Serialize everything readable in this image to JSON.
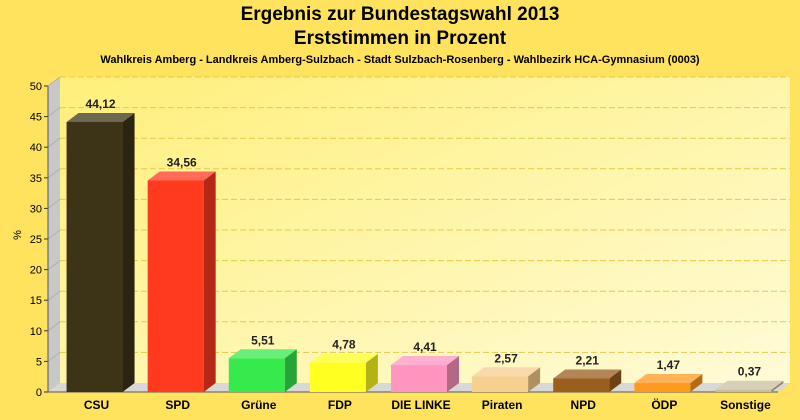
{
  "chart_data": {
    "type": "bar",
    "title": "Ergebnis zur Bundestagswahl 2013",
    "subtitle": "Erststimmen in Prozent",
    "caption": "Wahlkreis Amberg - Landkreis Amberg-Sulzbach - Stadt Sulzbach-Rosenberg - Wahlbezirk HCA-Gymnasium (0003)",
    "ylabel": "%",
    "xlabel": "",
    "ylim": [
      0,
      50
    ],
    "yticks": [
      0,
      5,
      10,
      15,
      20,
      25,
      30,
      35,
      40,
      45,
      50
    ],
    "grid": true,
    "categories": [
      "CSU",
      "SPD",
      "Grüne",
      "FDP",
      "DIE LINKE",
      "Piraten",
      "NPD",
      "ÖDP",
      "Sonstige"
    ],
    "values": [
      44.12,
      34.56,
      5.51,
      4.78,
      4.41,
      2.57,
      2.21,
      1.47,
      0.37
    ],
    "value_labels": [
      "44,12",
      "34,56",
      "5,51",
      "4,78",
      "4,41",
      "2,57",
      "2,21",
      "1,47",
      "0,37"
    ],
    "colors": [
      "#3d3418",
      "#ff3a1e",
      "#36ea4e",
      "#ffff22",
      "#ff96c0",
      "#f7cf8e",
      "#9a5e1e",
      "#ff9a1e",
      "#c9bfa0"
    ]
  }
}
